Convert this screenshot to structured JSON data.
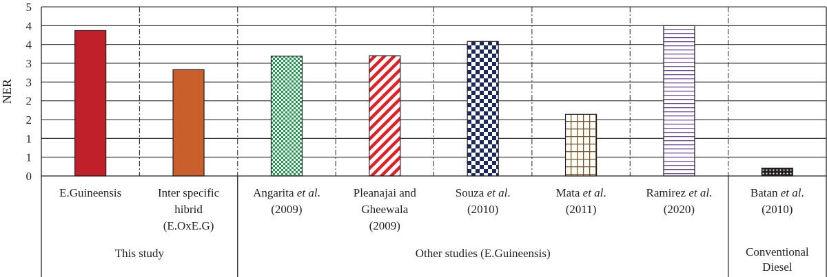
{
  "chart_data": {
    "type": "bar",
    "ylabel": "NER",
    "ylim": [
      0,
      4.5
    ],
    "yticks": [
      {
        "value": 0,
        "label": "0"
      },
      {
        "value": 0.5,
        "label": "1"
      },
      {
        "value": 1.0,
        "label": "1"
      },
      {
        "value": 1.5,
        "label": "2"
      },
      {
        "value": 2.0,
        "label": "2"
      },
      {
        "value": 2.5,
        "label": "3"
      },
      {
        "value": 3.0,
        "label": "3"
      },
      {
        "value": 3.5,
        "label": "4"
      },
      {
        "value": 4.0,
        "label": "4"
      },
      {
        "value": 4.5,
        "label": "5"
      }
    ],
    "grid": true,
    "categories": [
      {
        "key": "e-guineensis",
        "lines": [
          [
            {
              "t": "E.Guineensis"
            }
          ]
        ],
        "value": 3.87,
        "color": "#c0202a",
        "pattern": "solid"
      },
      {
        "key": "inter-specific-hybrid",
        "lines": [
          [
            {
              "t": "Inter specific"
            }
          ],
          [
            {
              "t": "hibrid"
            }
          ],
          [
            {
              "t": "(E.OxE.G)"
            }
          ]
        ],
        "value": 2.83,
        "color": "#c9602c",
        "pattern": "solid"
      },
      {
        "key": "angarita-2009",
        "lines": [
          [
            {
              "t": "Angarita "
            },
            {
              "t": "et al",
              "i": true
            },
            {
              "t": "."
            }
          ],
          [
            {
              "t": "(2009)"
            }
          ]
        ],
        "value": 3.19,
        "color": "#1e9a4c",
        "pattern": "checker-small"
      },
      {
        "key": "pleanajai-gheewala-2009",
        "lines": [
          [
            {
              "t": "Pleanajai and"
            }
          ],
          [
            {
              "t": "Gheewala"
            }
          ],
          [
            {
              "t": "(2009)"
            }
          ]
        ],
        "value": 3.2,
        "color": "#e31e24",
        "pattern": "diagonal"
      },
      {
        "key": "souza-2010",
        "lines": [
          [
            {
              "t": "Souza "
            },
            {
              "t": "et al",
              "i": true
            },
            {
              "t": "."
            }
          ],
          [
            {
              "t": "(2010)"
            }
          ]
        ],
        "value": 3.58,
        "color": "#1b2a5e",
        "pattern": "checker-large"
      },
      {
        "key": "mata-2011",
        "lines": [
          [
            {
              "t": "Mata "
            },
            {
              "t": "et al",
              "i": true
            },
            {
              "t": "."
            }
          ],
          [
            {
              "t": "(2011)"
            }
          ]
        ],
        "value": 1.64,
        "color": "#7a5520",
        "pattern": "grid"
      },
      {
        "key": "ramirez-2020",
        "lines": [
          [
            {
              "t": "Ramirez "
            },
            {
              "t": "et al",
              "i": true
            },
            {
              "t": "."
            }
          ],
          [
            {
              "t": "(2020)"
            }
          ]
        ],
        "value": 4.0,
        "color": "#6a4a9c",
        "pattern": "horizontal"
      },
      {
        "key": "batan-2010",
        "lines": [
          [
            {
              "t": "Batan "
            },
            {
              "t": "et al",
              "i": true
            },
            {
              "t": "."
            }
          ],
          [
            {
              "t": "(2010)"
            }
          ]
        ],
        "value": 0.21,
        "color": "#231f20",
        "pattern": "dots"
      }
    ],
    "groups": [
      {
        "lines": [
          "This study"
        ],
        "span": [
          0,
          1
        ]
      },
      {
        "lines": [
          "Other studies (E.Guineensis)"
        ],
        "span": [
          2,
          6
        ]
      },
      {
        "lines": [
          "Conventional",
          "Diesel"
        ],
        "span": [
          7,
          7
        ]
      }
    ]
  }
}
